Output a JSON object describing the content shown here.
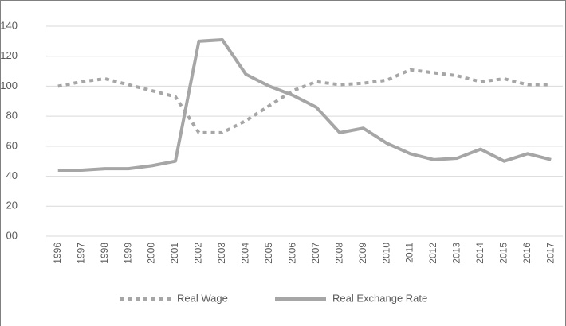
{
  "chart_data": {
    "type": "line",
    "categories": [
      "1996",
      "1997",
      "1998",
      "1999",
      "2000",
      "2001",
      "2002",
      "2003",
      "2004",
      "2005",
      "2006",
      "2007",
      "2008",
      "2009",
      "2010",
      "2011",
      "2012",
      "2013",
      "2014",
      "2015",
      "2016",
      "2017"
    ],
    "series": [
      {
        "name": "Real Wage",
        "color": "#a6a6a6",
        "dashed": true,
        "values": [
          100,
          103,
          105,
          101,
          97,
          93,
          69,
          69,
          77,
          87,
          97,
          103,
          101,
          102,
          104,
          111,
          109,
          107,
          103,
          105,
          101,
          101
        ]
      },
      {
        "name": "Real Exchange Rate",
        "color": "#a6a6a6",
        "dashed": false,
        "values": [
          44,
          44,
          45,
          45,
          47,
          50,
          130,
          131,
          108,
          100,
          94,
          86,
          69,
          72,
          62,
          55,
          51,
          52,
          58,
          50,
          55,
          51
        ]
      }
    ],
    "ylim": [
      0,
      140
    ],
    "yticks": [
      {
        "value": 0,
        "label": "00"
      },
      20,
      40,
      60,
      80,
      100,
      120,
      140
    ],
    "grid": true,
    "legend": "bottom"
  }
}
